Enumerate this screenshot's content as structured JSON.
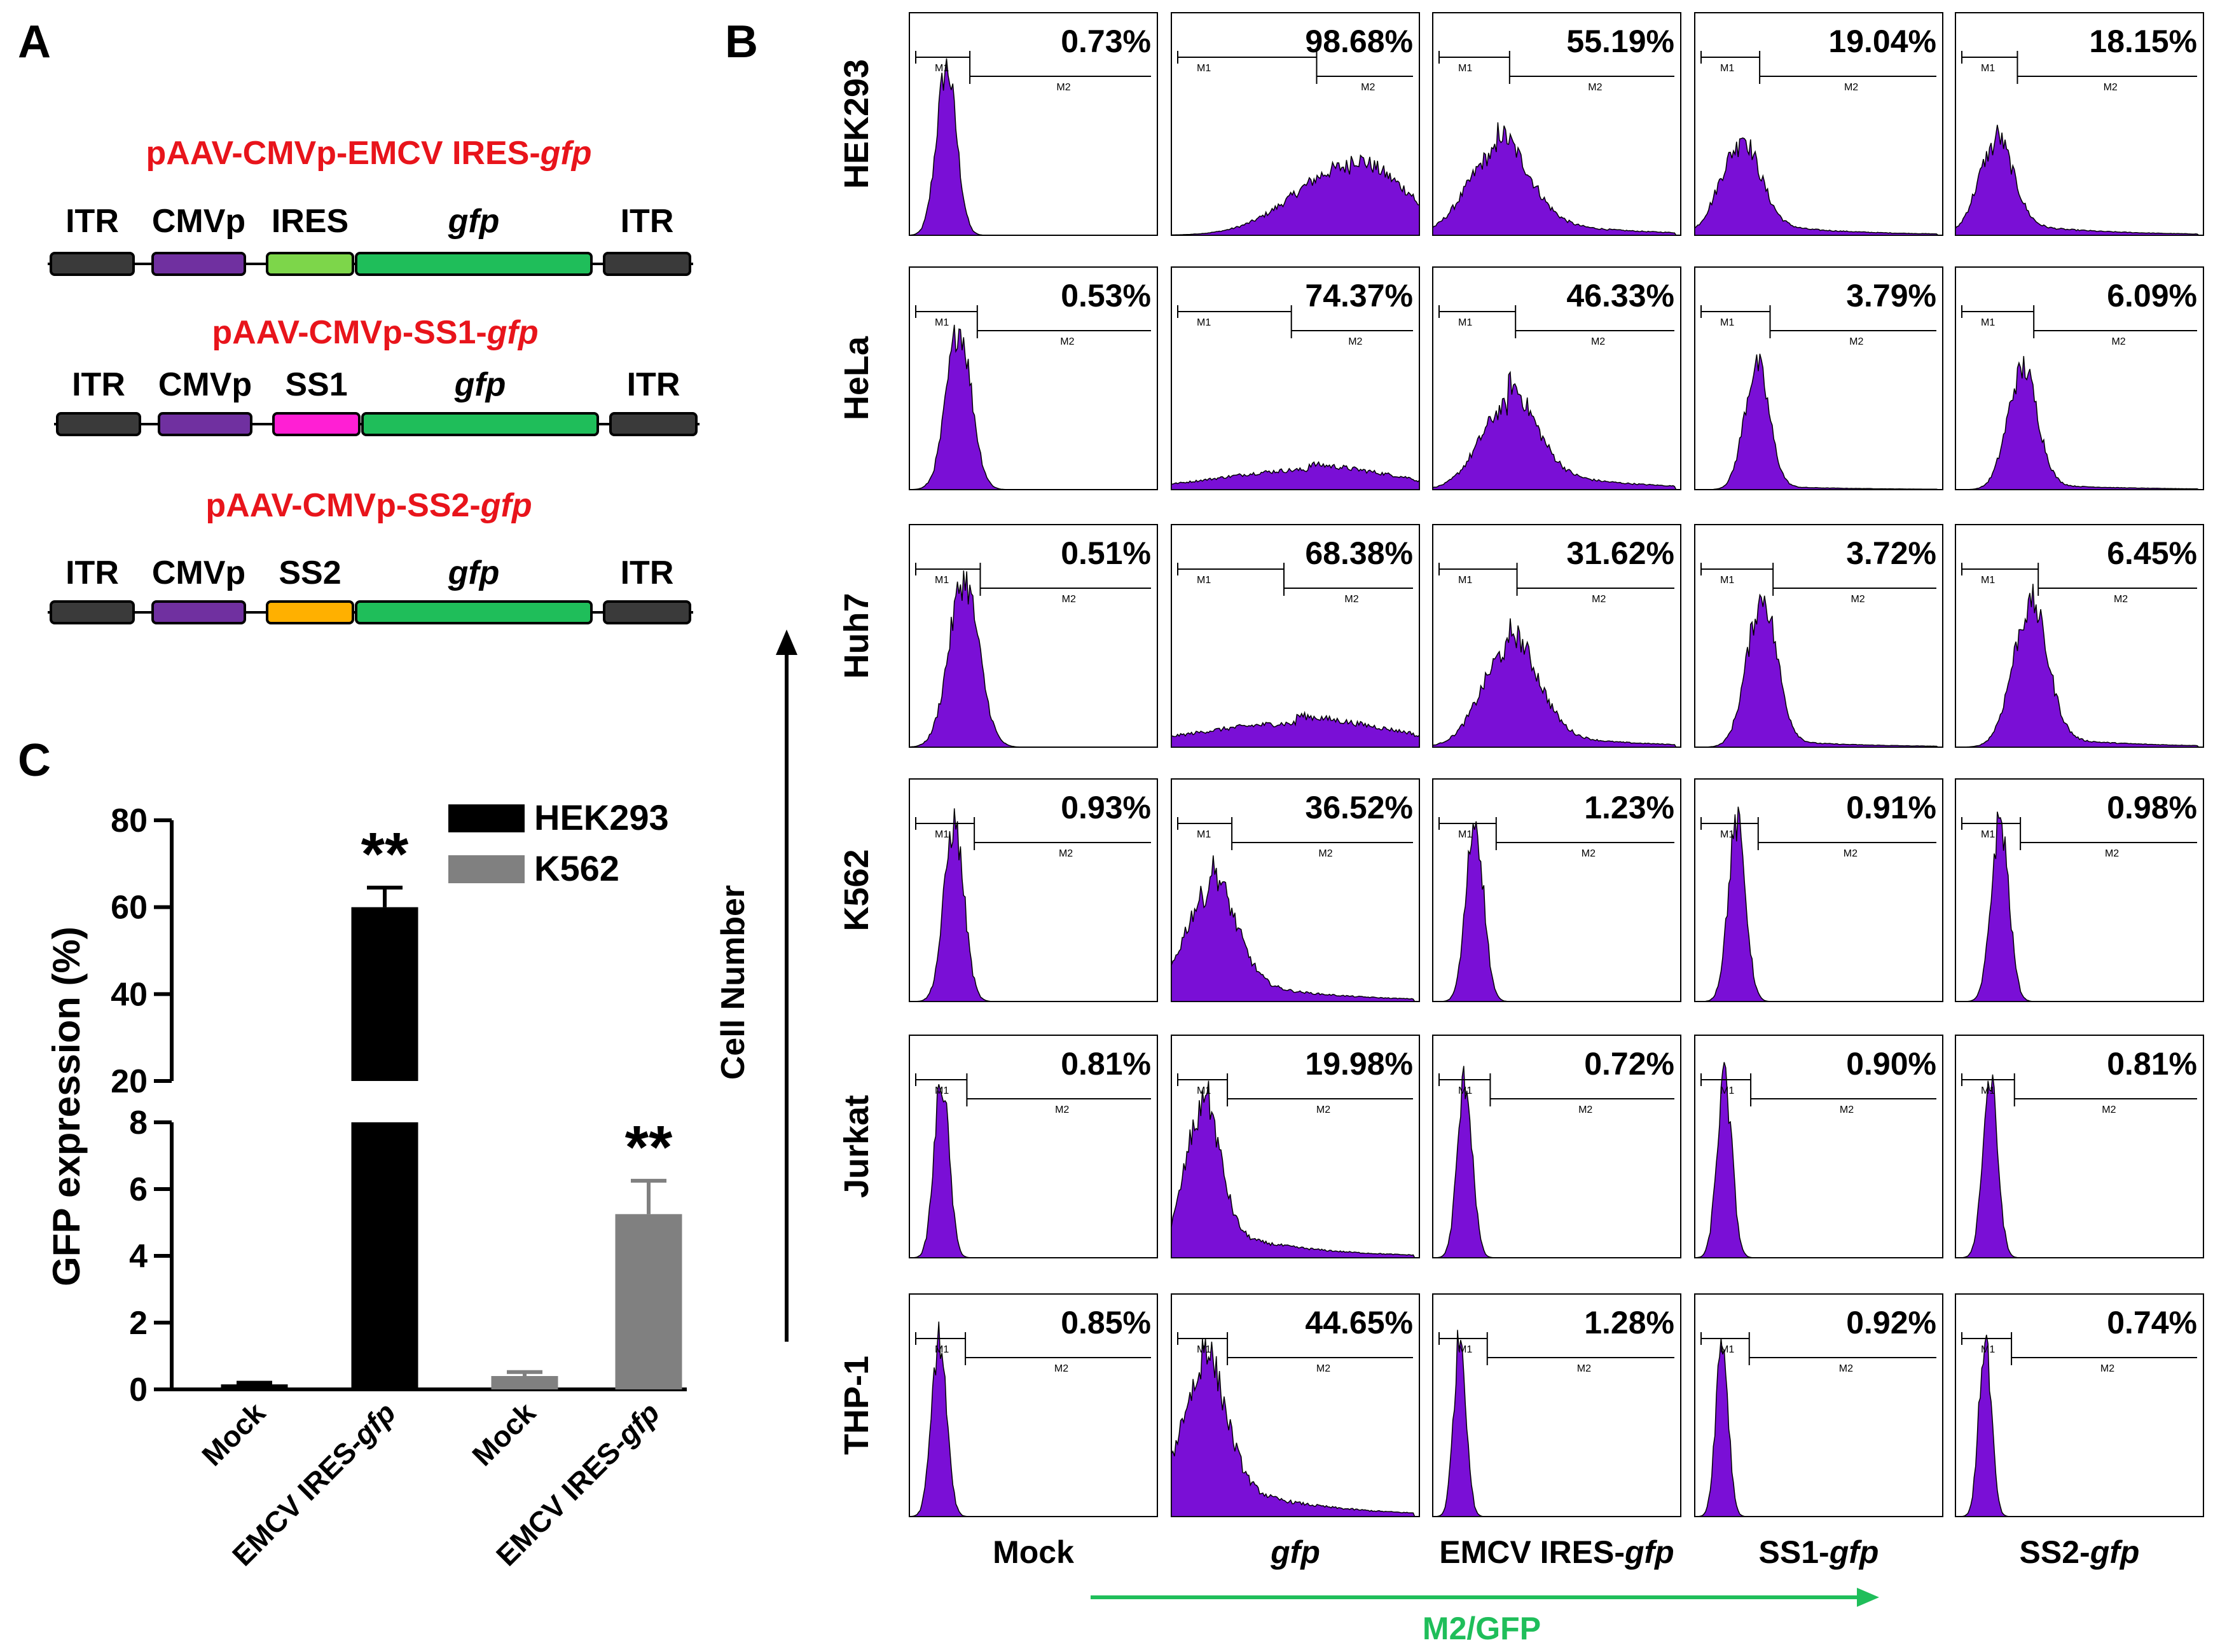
{
  "panels": {
    "a": "A",
    "b": "B",
    "c": "C"
  },
  "construct_map": {
    "constructs": [
      {
        "title_prefix": "pAAV-CMVp-EMCV IRES-",
        "title_italic": "gfp",
        "segments": [
          {
            "label": "ITR",
            "italic": false,
            "color": "#3a3a3a"
          },
          {
            "label": "CMVp",
            "italic": false,
            "color": "#7030a0"
          },
          {
            "label": "IRES",
            "italic": false,
            "color": "#7dd64a"
          },
          {
            "label": "gfp",
            "italic": true,
            "color": "#1fbe5a"
          },
          {
            "label": "ITR",
            "italic": false,
            "color": "#3a3a3a"
          }
        ]
      },
      {
        "title_prefix": "pAAV-CMVp-SS1-",
        "title_italic": "gfp",
        "segments": [
          {
            "label": "ITR",
            "italic": false,
            "color": "#3a3a3a"
          },
          {
            "label": "CMVp",
            "italic": false,
            "color": "#7030a0"
          },
          {
            "label": "SS1",
            "italic": false,
            "color": "#ff1fd4"
          },
          {
            "label": "gfp",
            "italic": true,
            "color": "#1fbe5a"
          },
          {
            "label": "ITR",
            "italic": false,
            "color": "#3a3a3a"
          }
        ]
      },
      {
        "title_prefix": "pAAV-CMVp-SS2-",
        "title_italic": "gfp",
        "segments": [
          {
            "label": "ITR",
            "italic": false,
            "color": "#3a3a3a"
          },
          {
            "label": "CMVp",
            "italic": false,
            "color": "#7030a0"
          },
          {
            "label": "SS2",
            "italic": false,
            "color": "#ffb000"
          },
          {
            "label": "gfp",
            "italic": true,
            "color": "#1fbe5a"
          },
          {
            "label": "ITR",
            "italic": false,
            "color": "#3a3a3a"
          }
        ]
      }
    ],
    "title_color": "#e8141b"
  },
  "chart_data": [
    {
      "type": "bar",
      "panel": "C",
      "title": "",
      "ylabel": "GFP expression (%)",
      "xlabel": "",
      "ylim": [
        0,
        80
      ],
      "axis_break": {
        "lower": [
          0,
          8
        ],
        "upper": [
          20,
          80
        ]
      },
      "lower_ticks": [
        "0",
        "2",
        "4",
        "6",
        "8"
      ],
      "upper_ticks": [
        "20",
        "40",
        "60",
        "80"
      ],
      "categories": [
        {
          "prefix": "Mock",
          "italic": ""
        },
        {
          "prefix": "EMCV IRES-",
          "italic": "gfp"
        },
        {
          "prefix": "Mock",
          "italic": ""
        },
        {
          "prefix": "EMCV IRES-",
          "italic": "gfp"
        }
      ],
      "series": [
        {
          "name": "HEK293",
          "color": "#000000",
          "values": [
            0.15,
            60.0,
            null,
            null
          ],
          "errors": [
            0.05,
            4.5,
            null,
            null
          ]
        },
        {
          "name": "K562",
          "color": "#808080",
          "values": [
            null,
            null,
            0.4,
            5.25
          ],
          "errors": [
            null,
            null,
            0.12,
            1.0
          ]
        }
      ],
      "annotations": [
        {
          "category_index": 1,
          "text": "**"
        },
        {
          "category_index": 3,
          "text": "**"
        }
      ]
    },
    {
      "type": "histogram_grid",
      "panel": "B",
      "y_axis_label": "Cell Number",
      "x_axis_label": "M2/GFP",
      "gate_labels": [
        "M1",
        "M2"
      ],
      "fill_color": "#7a0fd6",
      "cell_lines": [
        "HEK293",
        "HeLa",
        "Huh7",
        "K562",
        "Jurkat",
        "THP-1"
      ],
      "conditions": [
        {
          "prefix": "Mock",
          "italic": ""
        },
        {
          "prefix": "",
          "italic": "gfp"
        },
        {
          "prefix": "EMCV IRES-",
          "italic": "gfp"
        },
        {
          "prefix": "SS1-",
          "italic": "gfp"
        },
        {
          "prefix": "SS2-",
          "italic": "gfp"
        }
      ],
      "percentages": [
        [
          "0.73%",
          "98.68%",
          "55.19%",
          "19.04%",
          "18.15%"
        ],
        [
          "0.53%",
          "74.37%",
          "46.33%",
          "3.79%",
          "6.09%"
        ],
        [
          "0.51%",
          "68.38%",
          "31.62%",
          "3.72%",
          "6.45%"
        ],
        [
          "0.93%",
          "36.52%",
          "1.23%",
          "0.91%",
          "0.98%"
        ],
        [
          "0.81%",
          "19.98%",
          "0.72%",
          "0.90%",
          "0.81%"
        ],
        [
          "0.85%",
          "44.65%",
          "1.28%",
          "0.92%",
          "0.74%"
        ]
      ],
      "distributions": [
        [
          {
            "center": 0.15,
            "width": 0.04,
            "height": 0.85,
            "tail": 0.0
          },
          {
            "center": 0.72,
            "width": 0.22,
            "height": 0.35,
            "tail": 0.12
          },
          {
            "center": 0.26,
            "width": 0.12,
            "height": 0.42,
            "tail": 0.25
          },
          {
            "center": 0.18,
            "width": 0.08,
            "height": 0.45,
            "tail": 0.15
          },
          {
            "center": 0.16,
            "width": 0.07,
            "height": 0.45,
            "tail": 0.15
          }
        ],
        [
          {
            "center": 0.2,
            "width": 0.05,
            "height": 0.82,
            "tail": 0.0
          },
          {
            "center": 0.55,
            "width": 0.35,
            "height": 0.1,
            "tail": 0.3
          },
          {
            "center": 0.3,
            "width": 0.11,
            "height": 0.42,
            "tail": 0.3
          },
          {
            "center": 0.25,
            "width": 0.05,
            "height": 0.62,
            "tail": 0.03
          },
          {
            "center": 0.27,
            "width": 0.06,
            "height": 0.6,
            "tail": 0.05
          }
        ],
        [
          {
            "center": 0.22,
            "width": 0.06,
            "height": 0.85,
            "tail": 0.0
          },
          {
            "center": 0.5,
            "width": 0.4,
            "height": 0.12,
            "tail": 0.35
          },
          {
            "center": 0.31,
            "width": 0.11,
            "height": 0.5,
            "tail": 0.18
          },
          {
            "center": 0.27,
            "width": 0.06,
            "height": 0.74,
            "tail": 0.05
          },
          {
            "center": 0.3,
            "width": 0.07,
            "height": 0.7,
            "tail": 0.08
          }
        ],
        [
          {
            "center": 0.18,
            "width": 0.04,
            "height": 0.9,
            "tail": 0.0
          },
          {
            "center": 0.15,
            "width": 0.1,
            "height": 0.55,
            "tail": 0.25
          },
          {
            "center": 0.17,
            "width": 0.035,
            "height": 0.92,
            "tail": 0.0
          },
          {
            "center": 0.17,
            "width": 0.035,
            "height": 0.9,
            "tail": 0.0
          },
          {
            "center": 0.18,
            "width": 0.035,
            "height": 0.92,
            "tail": 0.0
          }
        ],
        [
          {
            "center": 0.13,
            "width": 0.03,
            "height": 0.9,
            "tail": 0.0
          },
          {
            "center": 0.12,
            "width": 0.07,
            "height": 0.72,
            "tail": 0.22
          },
          {
            "center": 0.13,
            "width": 0.03,
            "height": 0.9,
            "tail": 0.0
          },
          {
            "center": 0.12,
            "width": 0.03,
            "height": 0.9,
            "tail": 0.0
          },
          {
            "center": 0.14,
            "width": 0.03,
            "height": 0.9,
            "tail": 0.0
          }
        ],
        [
          {
            "center": 0.12,
            "width": 0.03,
            "height": 0.9,
            "tail": 0.0
          },
          {
            "center": 0.12,
            "width": 0.09,
            "height": 0.7,
            "tail": 0.3
          },
          {
            "center": 0.11,
            "width": 0.025,
            "height": 0.92,
            "tail": 0.0
          },
          {
            "center": 0.11,
            "width": 0.025,
            "height": 0.9,
            "tail": 0.0
          },
          {
            "center": 0.12,
            "width": 0.025,
            "height": 0.9,
            "tail": 0.0
          }
        ]
      ]
    }
  ],
  "colors": {
    "axis": "#000000",
    "arrow_green": "#1fbe5a",
    "gfp_label_green": "#1fbe5a"
  }
}
